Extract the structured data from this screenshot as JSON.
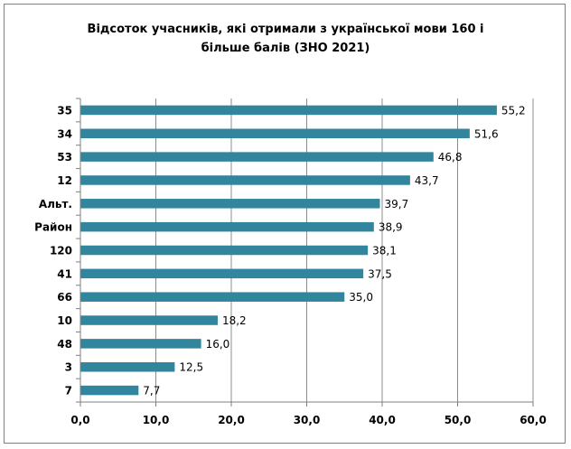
{
  "chart_data": {
    "type": "bar",
    "orientation": "horizontal",
    "title_lines": [
      "Відсоток учасників, які отримали з української мови  160 і",
      "більше балів  (ЗНО 2021)"
    ],
    "categories": [
      "35",
      "34",
      "53",
      "12",
      "Альт.",
      "Район",
      "120",
      "41",
      "66",
      "10",
      "48",
      "3",
      "7"
    ],
    "values": [
      55.2,
      51.6,
      46.8,
      43.7,
      39.7,
      38.9,
      38.1,
      37.5,
      35.0,
      18.2,
      16.0,
      12.5,
      7.7
    ],
    "value_labels": [
      "55,2",
      "51,6",
      "46,8",
      "43,7",
      "39,7",
      "38,9",
      "38,1",
      "37,5",
      "35,0",
      "18,2",
      "16,0",
      "12,5",
      "7,7"
    ],
    "xlim": [
      0,
      60
    ],
    "x_ticks": [
      0,
      10,
      20,
      30,
      40,
      50,
      60
    ],
    "x_tick_labels": [
      "0,0",
      "10,0",
      "20,0",
      "30,0",
      "40,0",
      "50,0",
      "60,0"
    ],
    "xlabel": "",
    "ylabel": "",
    "grid": "vertical",
    "legend": "none",
    "bar_color": "#31859c",
    "grid_color": "#8c8c8c",
    "axis_color": "#7f7f7f"
  }
}
